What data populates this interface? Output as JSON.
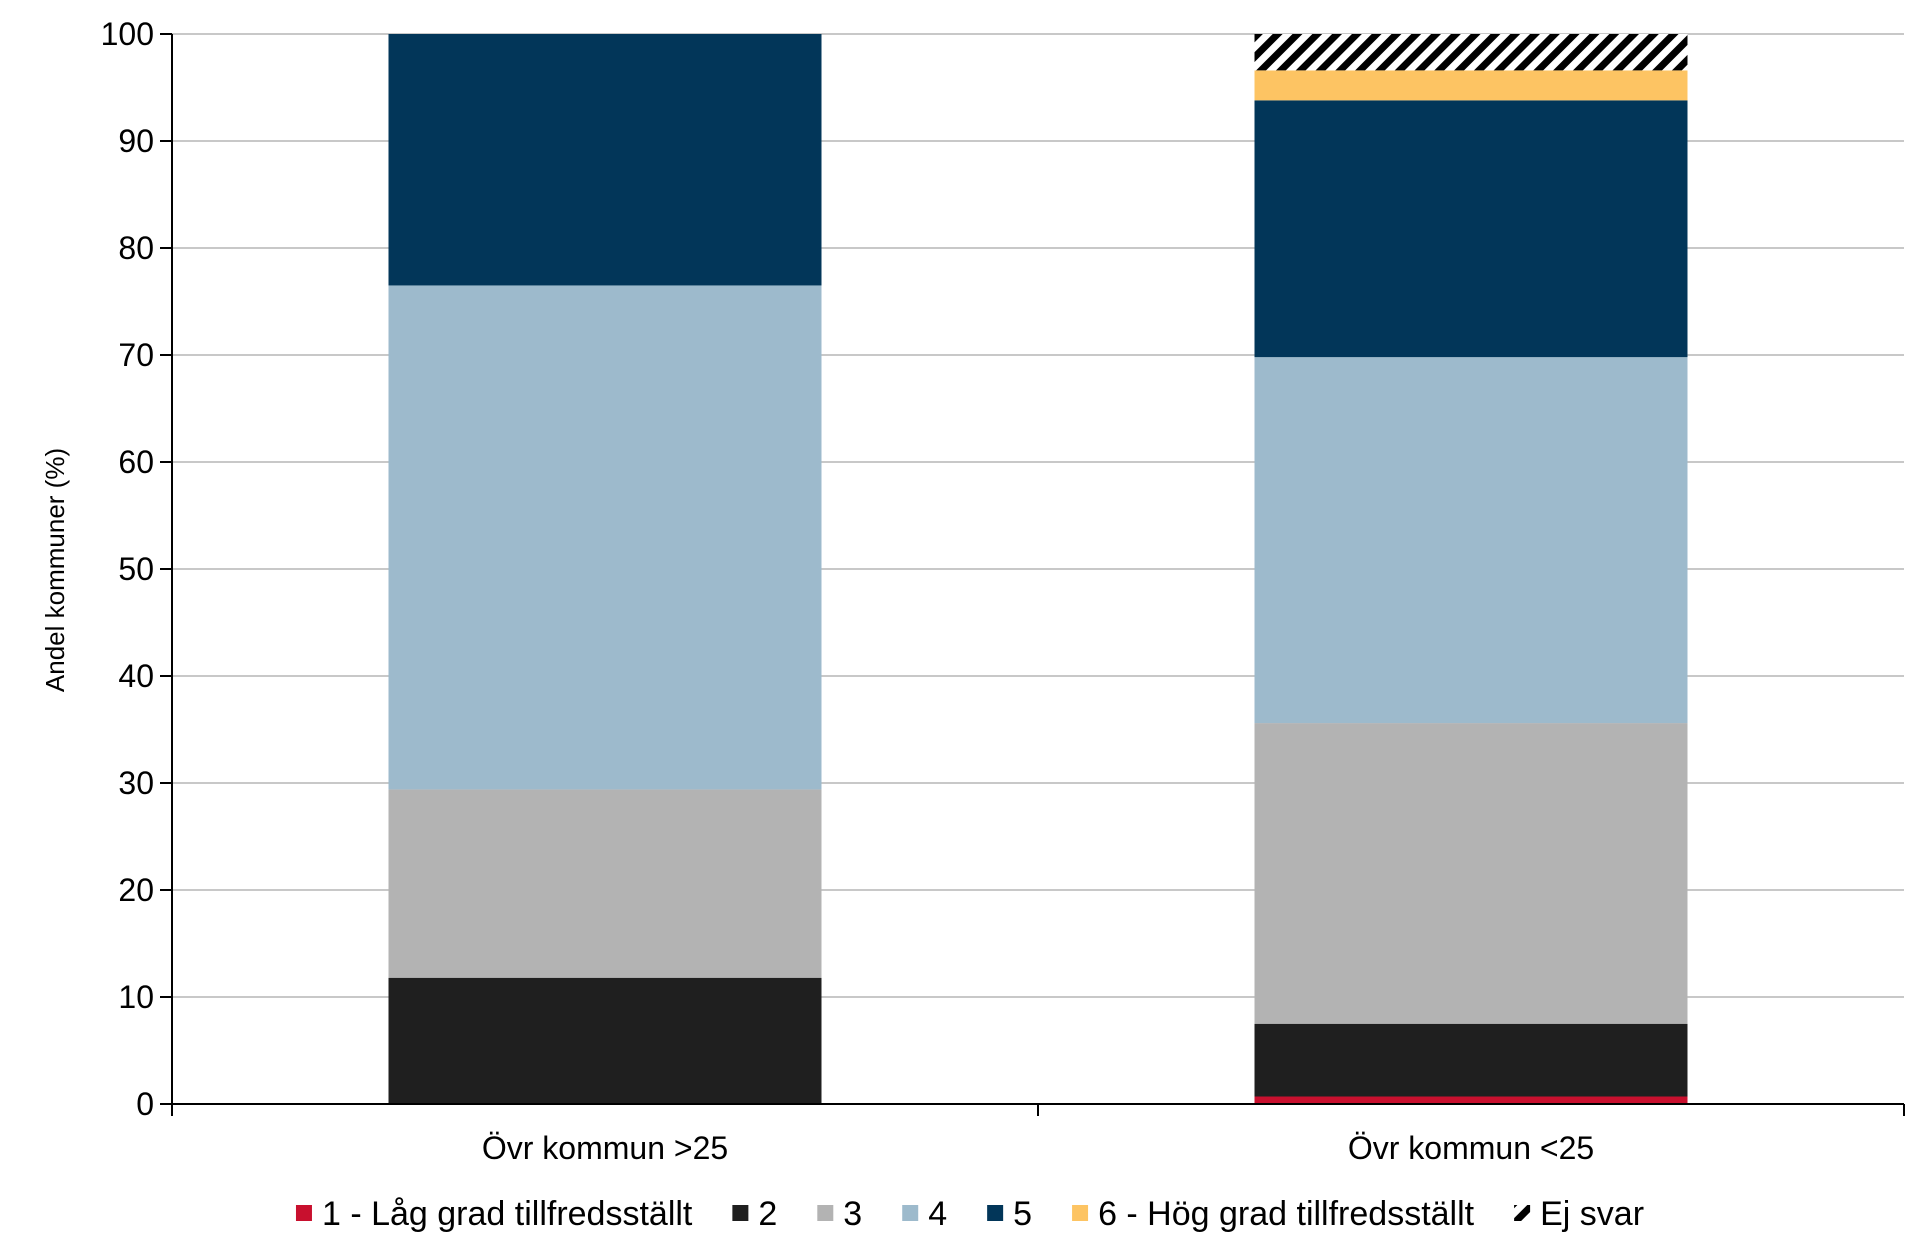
{
  "chart_data": {
    "type": "bar",
    "stacked": true,
    "ylabel": "Andel kommuner (%)",
    "ylim": [
      0,
      100
    ],
    "yticks": [
      0,
      10,
      20,
      30,
      40,
      50,
      60,
      70,
      80,
      90,
      100
    ],
    "grid": true,
    "legend_position": "bottom",
    "categories": [
      "Övr kommun >25",
      "Övr kommun <25"
    ],
    "series": [
      {
        "name": "1 - Låg grad tillfredsställt",
        "color": "#c8102e",
        "values": [
          0,
          0.7
        ]
      },
      {
        "name": "2",
        "color": "#1f1f1f",
        "values": [
          11.8,
          6.8
        ]
      },
      {
        "name": "3",
        "color": "#b3b3b3",
        "values": [
          17.6,
          28.1
        ]
      },
      {
        "name": "4",
        "color": "#9dbacc",
        "values": [
          47.1,
          34.2
        ]
      },
      {
        "name": "5",
        "color": "#023659",
        "values": [
          23.5,
          24.0
        ]
      },
      {
        "name": "6 - Hög grad tillfredsställt",
        "color": "#fdc463",
        "values": [
          0,
          2.8
        ]
      },
      {
        "name": "Ej svar",
        "color": "hatch",
        "values": [
          0,
          3.4
        ]
      }
    ]
  }
}
